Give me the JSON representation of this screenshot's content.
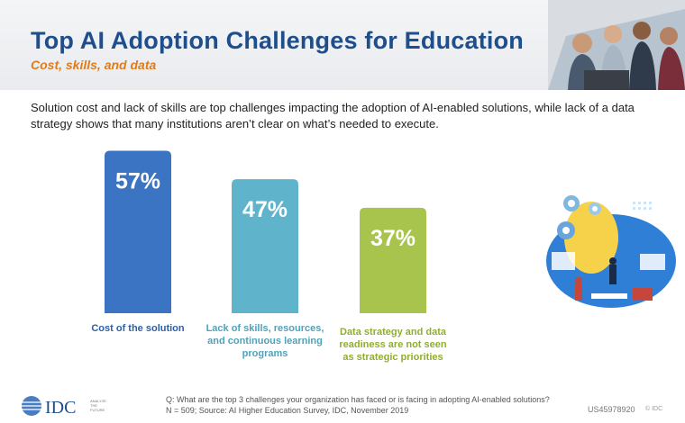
{
  "header": {
    "title": "Top AI Adoption Challenges for Education",
    "subtitle": "Cost, skills, and data"
  },
  "description": "Solution cost and lack of skills are top challenges impacting the adoption of AI-enabled solutions, while lack of a data strategy shows that many institutions aren’t clear on what’s needed to execute.",
  "chart_data": {
    "type": "bar",
    "categories": [
      "Cost of the solution",
      "Lack of skills, resources, and continuous learning programs",
      "Data strategy and data readiness are not seen as strategic priorities"
    ],
    "category_lines": [
      [
        "Cost of the solution"
      ],
      [
        "Lack of skills, resources,",
        "and continuous learning",
        "programs"
      ],
      [
        "Data strategy and data",
        "readiness are not seen",
        "as strategic priorities"
      ]
    ],
    "values": [
      57,
      47,
      37
    ],
    "data_labels": [
      "57%",
      "47%",
      "37%"
    ],
    "colors": [
      "#3b74c3",
      "#5fb4cb",
      "#a9c44d"
    ],
    "label_colors": [
      "#2d5fa8",
      "#4fa2bb",
      "#8fae2e"
    ],
    "ylim": [
      0,
      60
    ],
    "grid": false
  },
  "footer": {
    "logo_text": "IDC",
    "logo_tagline": [
      "ANALYZE",
      "THE",
      "FUTURE"
    ],
    "question": "Q: What are the top 3 challenges your organization has faced or is facing in adopting AI-enabled solutions?",
    "source": "N = 509; Source: AI Higher Education Survey, IDC, November 2019",
    "doc_id": "US45978920",
    "copyright": "© IDC"
  },
  "colors": {
    "title": "#1f4e8c",
    "subtitle": "#e07b1a"
  },
  "icons": [
    "students-photo",
    "ai-illustration",
    "idc-logo-globe"
  ]
}
